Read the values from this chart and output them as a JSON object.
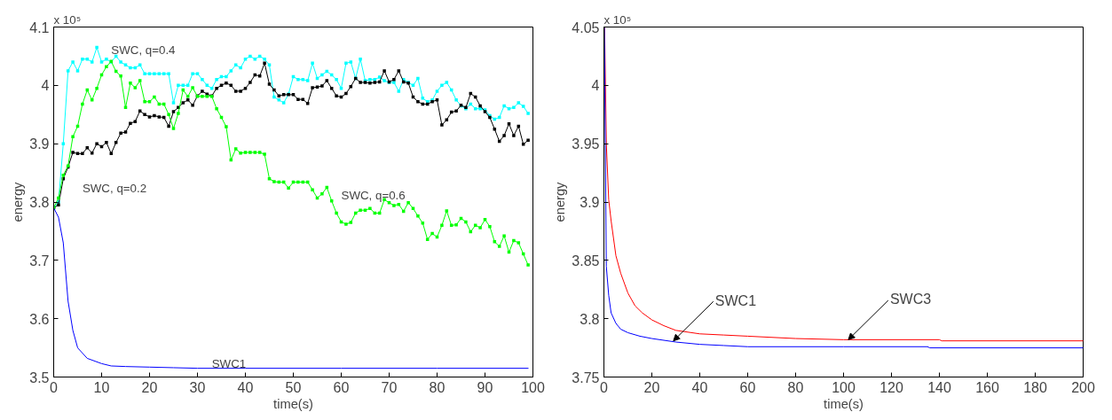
{
  "chart_data": [
    {
      "type": "line",
      "xlabel": "time(s)",
      "ylabel": "energy",
      "xlim": [
        0,
        100
      ],
      "ylim": [
        3.5,
        4.1
      ],
      "xticks": [
        0,
        10,
        20,
        30,
        40,
        50,
        60,
        70,
        80,
        90,
        100
      ],
      "yticks": [
        3.5,
        3.6,
        3.7,
        3.8,
        3.9,
        4,
        4.1
      ],
      "annotations": [
        "x 10⁵",
        "SWC, q=0.4",
        "SWC, q=0.2",
        "SWC, q=0.6",
        "SWC1"
      ],
      "series": [
        {
          "color": "#00ffff",
          "marker": "square",
          "x": [
            0,
            1,
            2,
            3,
            4,
            5,
            6,
            7,
            8,
            9,
            10,
            11,
            12,
            13,
            14,
            15,
            16,
            17,
            18,
            19,
            20,
            21,
            22,
            23,
            24,
            25,
            26,
            27,
            28,
            29,
            30,
            31,
            32,
            33,
            34,
            35,
            36,
            37,
            38,
            39,
            40,
            41,
            42,
            43,
            44,
            45,
            46,
            47,
            48,
            49,
            50,
            51,
            52,
            53,
            54,
            55,
            56,
            57,
            58,
            59,
            60,
            61,
            62,
            63,
            64,
            65,
            66,
            67,
            68,
            69,
            70,
            71,
            72,
            73,
            74,
            75,
            76,
            77,
            78,
            79,
            80,
            81,
            82,
            83,
            84,
            85,
            86,
            87,
            88,
            89,
            90,
            91,
            92,
            93,
            94,
            95,
            96,
            97,
            98,
            99
          ],
          "values": [
            3.79,
            3.8,
            3.9,
            4.025,
            4.04,
            4.025,
            4.045,
            4.045,
            4.04,
            4.065,
            4.04,
            4.045,
            4.04,
            4.05,
            4.04,
            4.035,
            4.03,
            4.03,
            4.035,
            4.02,
            4.02,
            4.02,
            4.02,
            4.02,
            4.02,
            3.97,
            4.0,
            4.0,
            4.0,
            4.02,
            4.02,
            4.01,
            4.0,
            3.995,
            4.01,
            4.015,
            4.015,
            4.025,
            4.035,
            4.03,
            4.045,
            4.05,
            4.045,
            4.05,
            4.045,
            4.035,
            3.98,
            3.975,
            3.97,
            3.985,
            4.015,
            4.01,
            4.01,
            4.008,
            4.038,
            4.012,
            4.018,
            4.024,
            4.018,
            4.01,
            3.995,
            4.038,
            4.04,
            4.012,
            4.045,
            4.008,
            4.01,
            4.01,
            4.014,
            4.008,
            4.005,
            4.005,
            3.99,
            4.01,
            4.005,
            4.0,
            4.012,
            3.978,
            3.972,
            3.975,
            3.99,
            4.0,
            4.005,
            3.992,
            3.975,
            3.965,
            3.96,
            3.968,
            3.96,
            3.96,
            3.958,
            3.948,
            3.942,
            3.945,
            3.965,
            3.96,
            3.962,
            3.97,
            3.964,
            3.952
          ]
        },
        {
          "color": "#000000",
          "marker": "square",
          "x": [
            0,
            1,
            2,
            3,
            4,
            5,
            6,
            7,
            8,
            9,
            10,
            11,
            12,
            13,
            14,
            15,
            16,
            17,
            18,
            19,
            20,
            21,
            22,
            23,
            24,
            25,
            26,
            27,
            28,
            29,
            30,
            31,
            32,
            33,
            34,
            35,
            36,
            37,
            38,
            39,
            40,
            41,
            42,
            43,
            44,
            45,
            46,
            47,
            48,
            49,
            50,
            51,
            52,
            53,
            54,
            55,
            56,
            57,
            58,
            59,
            60,
            61,
            62,
            63,
            64,
            65,
            66,
            67,
            68,
            69,
            70,
            71,
            72,
            73,
            74,
            75,
            76,
            77,
            78,
            79,
            80,
            81,
            82,
            83,
            84,
            85,
            86,
            87,
            88,
            89,
            90,
            91,
            92,
            93,
            94,
            95,
            96,
            97,
            98,
            99
          ],
          "values": [
            3.79,
            3.795,
            3.84,
            3.86,
            3.885,
            3.883,
            3.883,
            3.893,
            3.884,
            3.9,
            3.895,
            3.902,
            3.883,
            3.902,
            3.918,
            3.92,
            3.935,
            3.938,
            3.956,
            3.95,
            3.946,
            3.948,
            3.946,
            3.945,
            3.93,
            3.955,
            3.962,
            3.97,
            3.975,
            3.966,
            3.982,
            3.99,
            3.985,
            3.982,
            3.995,
            4.0,
            4.004,
            4.0,
            3.99,
            3.99,
            3.995,
            4.005,
            4.018,
            4.016,
            4.038,
            4.002,
            3.992,
            3.982,
            3.984,
            3.984,
            3.984,
            3.976,
            3.976,
            3.969,
            3.996,
            3.997,
            3.999,
            4.008,
            3.995,
            3.982,
            3.98,
            3.986,
            3.998,
            4.012,
            4.005,
            4.005,
            4.004,
            4.005,
            4.006,
            4.025,
            4.006,
            4.01,
            4.025,
            4.006,
            4.004,
            3.98,
            3.972,
            3.968,
            3.968,
            3.972,
            3.975,
            3.932,
            3.941,
            3.954,
            3.956,
            3.966,
            3.962,
            3.986,
            3.98,
            3.965,
            3.955,
            3.945,
            3.925,
            3.904,
            3.914,
            3.934,
            3.914,
            3.93,
            3.899,
            3.906
          ]
        },
        {
          "color": "#00ff00",
          "marker": "square",
          "x": [
            0,
            1,
            2,
            3,
            4,
            5,
            6,
            7,
            8,
            9,
            10,
            11,
            12,
            13,
            14,
            15,
            16,
            17,
            18,
            19,
            20,
            21,
            22,
            23,
            24,
            25,
            26,
            27,
            28,
            29,
            30,
            31,
            32,
            33,
            34,
            35,
            36,
            37,
            38,
            39,
            40,
            41,
            42,
            43,
            44,
            45,
            46,
            47,
            48,
            49,
            50,
            51,
            52,
            53,
            54,
            55,
            56,
            57,
            58,
            59,
            60,
            61,
            62,
            63,
            64,
            65,
            66,
            67,
            68,
            69,
            70,
            71,
            72,
            73,
            74,
            75,
            76,
            77,
            78,
            79,
            80,
            81,
            82,
            83,
            84,
            85,
            86,
            87,
            88,
            89,
            90,
            91,
            92,
            93,
            94,
            95,
            96,
            97,
            98,
            99
          ],
          "values": [
            3.79,
            3.807,
            3.846,
            3.862,
            3.912,
            3.93,
            3.968,
            3.992,
            3.975,
            3.995,
            4.018,
            4.032,
            4.041,
            4.024,
            4.016,
            3.962,
            4.004,
            3.996,
            4.008,
            3.972,
            3.972,
            3.98,
            3.968,
            3.968,
            3.95,
            3.926,
            3.952,
            3.992,
            3.981,
            3.996,
            3.981,
            3.981,
            3.981,
            3.981,
            3.96,
            3.945,
            3.929,
            3.872,
            3.891,
            3.884,
            3.885,
            3.885,
            3.885,
            3.885,
            3.882,
            3.84,
            3.835,
            3.834,
            3.834,
            3.824,
            3.834,
            3.834,
            3.834,
            3.834,
            3.821,
            3.807,
            3.814,
            3.825,
            3.802,
            3.781,
            3.766,
            3.762,
            3.765,
            3.781,
            3.786,
            3.786,
            3.789,
            3.781,
            3.781,
            3.804,
            3.799,
            3.794,
            3.796,
            3.784,
            3.799,
            3.789,
            3.776,
            3.764,
            3.736,
            3.746,
            3.74,
            3.76,
            3.785,
            3.76,
            3.761,
            3.772,
            3.766,
            3.749,
            3.76,
            3.756,
            3.77,
            3.758,
            3.732,
            3.724,
            3.742,
            3.714,
            3.734,
            3.73,
            3.711,
            3.692
          ]
        },
        {
          "color": "#0000ff",
          "marker": "none",
          "x": [
            0,
            1,
            2,
            3,
            4,
            5,
            7,
            10,
            12,
            15,
            20,
            25,
            30,
            40,
            60,
            80,
            99
          ],
          "values": [
            3.79,
            3.774,
            3.73,
            3.63,
            3.58,
            3.55,
            3.532,
            3.523,
            3.519,
            3.518,
            3.517,
            3.516,
            3.515,
            3.515,
            3.515,
            3.515,
            3.515
          ]
        }
      ]
    },
    {
      "type": "line",
      "xlabel": "time(s)",
      "ylabel": "energy",
      "xlim": [
        0,
        200
      ],
      "ylim": [
        3.75,
        4.05
      ],
      "xticks": [
        0,
        20,
        40,
        60,
        80,
        100,
        120,
        140,
        160,
        180,
        200
      ],
      "yticks": [
        3.75,
        3.8,
        3.85,
        3.9,
        3.95,
        4,
        4.05
      ],
      "annotations": [
        "x 10⁵",
        {
          "text": "SWC1",
          "x": 29,
          "y": 3.781
        },
        {
          "text": "SWC3",
          "x": 102,
          "y": 3.782
        }
      ],
      "series": [
        {
          "color": "#ff0000",
          "marker": "none",
          "x": [
            0.3,
            1,
            2,
            3,
            5,
            7,
            10,
            13,
            16,
            20,
            25,
            30,
            40,
            50,
            60,
            80,
            100,
            140,
            141,
            200
          ],
          "values": [
            4.05,
            3.95,
            3.902,
            3.884,
            3.854,
            3.839,
            3.822,
            3.811,
            3.805,
            3.799,
            3.794,
            3.79,
            3.787,
            3.786,
            3.785,
            3.783,
            3.782,
            3.782,
            3.781,
            3.781
          ]
        },
        {
          "color": "#0000ff",
          "marker": "none",
          "x": [
            0.2,
            1,
            2,
            3,
            5,
            7,
            10,
            15,
            20,
            30,
            40,
            50,
            60,
            100,
            135,
            136,
            200
          ],
          "values": [
            4.05,
            3.845,
            3.82,
            3.805,
            3.796,
            3.791,
            3.788,
            3.785,
            3.783,
            3.78,
            3.778,
            3.777,
            3.776,
            3.776,
            3.776,
            3.775,
            3.775
          ]
        }
      ]
    }
  ]
}
